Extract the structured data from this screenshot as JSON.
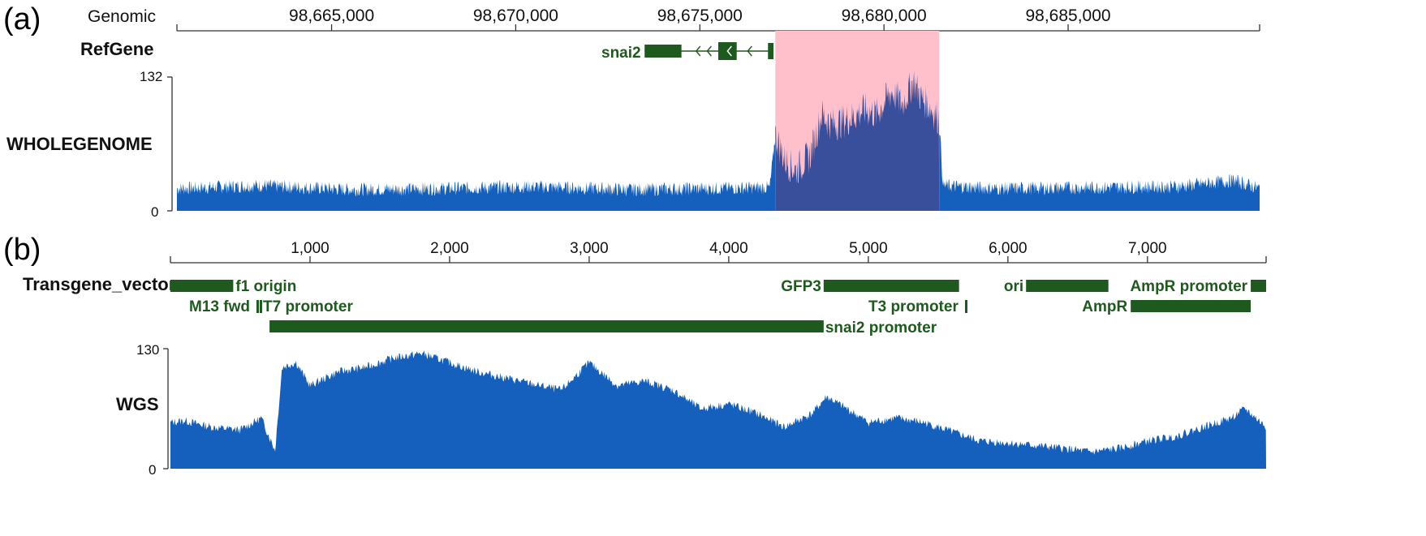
{
  "panels": {
    "a": {
      "label": "(a)",
      "axis_label": "Genomic",
      "refgene_label": "RefGene",
      "gene_name": "snai2",
      "coverage_label": "WHOLEGENOME",
      "ymax_label": "132",
      "ymin_label": "0"
    },
    "b": {
      "label": "(b)",
      "vector_label": "Transgene_vector",
      "coverage_label": "WGS",
      "ymax_label": "130",
      "ymin_label": "0"
    }
  },
  "colors": {
    "coverage": "#1560bd",
    "highlight_fill": "#ffc0cb",
    "highlight_coverage": "#3a4f9b",
    "feature": "#1e5a1e"
  },
  "chart_data": [
    {
      "type": "area",
      "panel": "a",
      "xlabel": "Genomic",
      "xlim": [
        98660800,
        98690200
      ],
      "x_ticks": [
        98665000,
        98670000,
        98675000,
        98680000,
        98685000
      ],
      "x_tick_labels": [
        "98,665,000",
        "98,670,000",
        "98,675,000",
        "98,680,000",
        "98,685,000"
      ],
      "ylim": [
        0,
        132
      ],
      "y_ticks": [
        0,
        132
      ],
      "gene": {
        "name": "snai2",
        "track": "RefGene",
        "strand": "-",
        "start": 98673500,
        "end": 98677000,
        "exons": [
          [
            98673500,
            98674500
          ],
          [
            98675500,
            98676000
          ],
          [
            98676850,
            98677000
          ]
        ]
      },
      "highlight": {
        "start": 98677050,
        "end": 98681500
      },
      "series": [
        {
          "name": "WHOLEGENOME",
          "x": [
            98660800,
            98663000,
            98665500,
            98668000,
            98670500,
            98673000,
            98675000,
            98676900,
            98677050,
            98677300,
            98677600,
            98678000,
            98678300,
            98678600,
            98679000,
            98679500,
            98679800,
            98680200,
            98680500,
            98680800,
            98681000,
            98681300,
            98681500,
            98681600,
            98683000,
            98685500,
            98688000,
            98689500,
            98690200
          ],
          "values": [
            22,
            25,
            21,
            22,
            24,
            21,
            22,
            23,
            75,
            50,
            40,
            55,
            95,
            85,
            90,
            100,
            95,
            118,
            105,
            128,
            112,
            100,
            90,
            25,
            22,
            23,
            24,
            30,
            22
          ]
        }
      ]
    },
    {
      "type": "area",
      "panel": "b",
      "xlim": [
        0,
        7850
      ],
      "x_ticks": [
        1000,
        2000,
        3000,
        4000,
        5000,
        6000,
        7000
      ],
      "x_tick_labels": [
        "1,000",
        "2,000",
        "3,000",
        "4,000",
        "5,000",
        "6,000",
        "7,000"
      ],
      "ylim": [
        0,
        130
      ],
      "y_ticks": [
        0,
        130
      ],
      "features": [
        {
          "name": "f1 origin",
          "start": 0,
          "end": 450,
          "row": 1
        },
        {
          "name": "M13 fwd",
          "start": 450,
          "end": 470,
          "row": 2
        },
        {
          "name": "T7 promoter",
          "start": 470,
          "end": 490,
          "row": 2
        },
        {
          "name": "snai2 promoter",
          "start": 710,
          "end": 4680,
          "row": 3
        },
        {
          "name": "GFP3",
          "start": 4680,
          "end": 5650,
          "row": 1
        },
        {
          "name": "T3 promoter",
          "start": 5650,
          "end": 5670,
          "row": 2
        },
        {
          "name": "ori",
          "start": 6130,
          "end": 6720,
          "row": 1
        },
        {
          "name": "AmpR",
          "start": 6880,
          "end": 7740,
          "row": 2
        },
        {
          "name": "AmpR promoter",
          "start": 7740,
          "end": 7850,
          "row": 1
        }
      ],
      "series": [
        {
          "name": "WGS",
          "x": [
            0,
            100,
            300,
            500,
            650,
            750,
            800,
            900,
            1000,
            1200,
            1400,
            1600,
            1800,
            2000,
            2200,
            2500,
            2800,
            3000,
            3200,
            3400,
            3600,
            3800,
            4000,
            4200,
            4400,
            4600,
            4700,
            4900,
            5000,
            5200,
            5400,
            5600,
            5800,
            6000,
            6200,
            6400,
            6600,
            6800,
            7000,
            7200,
            7400,
            7600,
            7700,
            7850
          ],
          "values": [
            50,
            52,
            45,
            42,
            55,
            20,
            110,
            115,
            90,
            105,
            110,
            120,
            125,
            115,
            105,
            95,
            85,
            115,
            90,
            95,
            85,
            65,
            70,
            60,
            45,
            60,
            78,
            60,
            50,
            55,
            50,
            40,
            30,
            28,
            25,
            22,
            18,
            22,
            30,
            35,
            45,
            55,
            65,
            45
          ]
        }
      ]
    }
  ]
}
